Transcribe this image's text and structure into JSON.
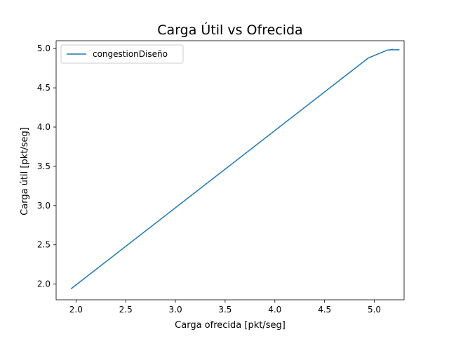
{
  "chart_data": {
    "type": "line",
    "title": "Carga Útil vs Ofrecida",
    "xlabel": "Carga ofrecida [pkt/seg]",
    "ylabel": "Carga útil [pkt/seg]",
    "xlim": [
      1.8,
      5.3
    ],
    "ylim": [
      1.8,
      5.1
    ],
    "xticks": [
      2.0,
      2.5,
      3.0,
      3.5,
      4.0,
      4.5,
      5.0
    ],
    "yticks": [
      2.0,
      2.5,
      3.0,
      3.5,
      4.0,
      4.5,
      5.0
    ],
    "xtick_labels": [
      "2.0",
      "2.5",
      "3.0",
      "3.5",
      "4.0",
      "4.5",
      "5.0"
    ],
    "ytick_labels": [
      "2.0",
      "2.5",
      "3.0",
      "3.5",
      "4.0",
      "4.5",
      "5.0"
    ],
    "grid": false,
    "legend_position": "top-left",
    "series": [
      {
        "name": "congestionDiseño",
        "color": "#1f77b4",
        "x": [
          1.95,
          4.94,
          5.13,
          5.17,
          5.25,
          5.16,
          5.19
        ],
        "y": [
          1.94,
          4.88,
          4.98,
          4.985,
          4.985,
          4.985,
          4.99
        ]
      }
    ]
  }
}
